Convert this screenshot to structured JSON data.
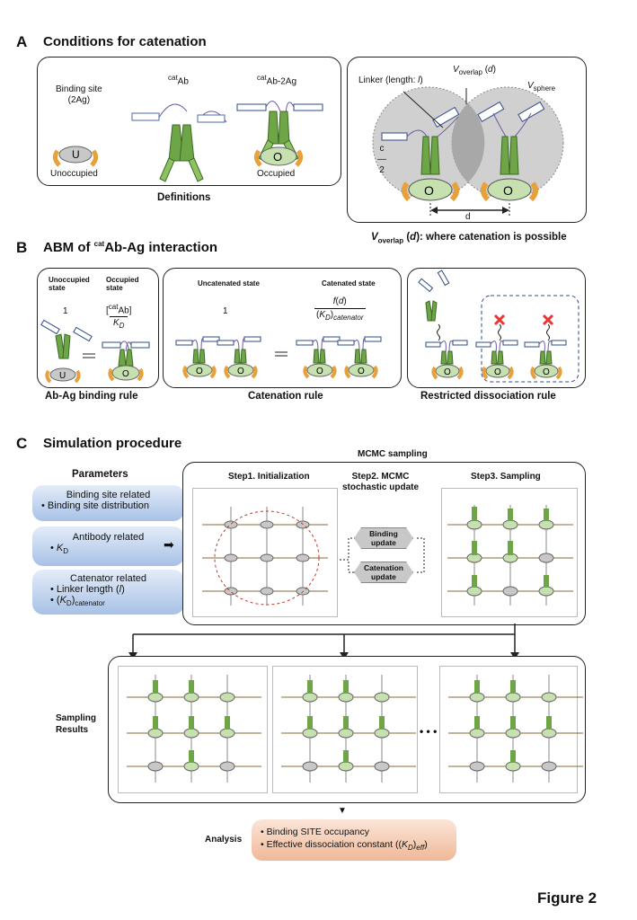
{
  "sectionA": {
    "letter": "A",
    "title": "Conditions for catenation",
    "binding_site_label": "Binding site\n(2Ag)",
    "catab_label": "catAb",
    "catab2ag_label": "catAb-2Ag",
    "u_letter": "U",
    "o_letter": "O",
    "unoccupied": "Unoccupied",
    "occupied": "Occupied",
    "definitions": "Definitions",
    "linker_label": "Linker (length: l)",
    "voverlap_label": "Voverlap (d)",
    "vsphere_label": "Vsphere",
    "c_over_2": "c/2",
    "d_label": "d",
    "caption_right": "Voverlap (d): where catenation is possible"
  },
  "sectionB": {
    "letter": "B",
    "title": "ABM of catAb-Ag interaction",
    "unoccupied_state": "Unoccupied\nstate",
    "occupied_state": "Occupied\nstate",
    "one": "1",
    "ratio_num": "[catAb]",
    "ratio_den": "K_D",
    "uncatenated_state": "Uncatenated state",
    "catenated_state": "Catenated state",
    "cat_num": "f(d)",
    "cat_den": "(K_D)catenator",
    "rule1": "Ab-Ag binding rule",
    "rule2": "Catenation rule",
    "rule3": "Restricted dissociation rule"
  },
  "sectionC": {
    "letter": "C",
    "title": "Simulation procedure",
    "mcmc": "MCMC sampling",
    "parameters": "Parameters",
    "p1_title": "Binding site related",
    "p1_item": "• Binding site distribution",
    "p2_title": "Antibody related",
    "p2_item": "• K_D",
    "p3_title": "Catenator related",
    "p3_item1": "• Linker length (l)",
    "p3_item2": "• (K_D)catenator",
    "step1": "Step1. Initialization",
    "step2": "Step2. MCMC\nstochastic update",
    "step3": "Step3. Sampling",
    "binding_update": "Binding\nupdate",
    "catenation_update": "Catenation\nupdate",
    "sampling_results": "Sampling\nResults",
    "ellipsis": "• • •",
    "analysis": "Analysis",
    "a1": "• Binding SITE occupancy",
    "a2": "• Effective dissociation constant ((K_D)eff)"
  },
  "figure_label": "Figure 2"
}
